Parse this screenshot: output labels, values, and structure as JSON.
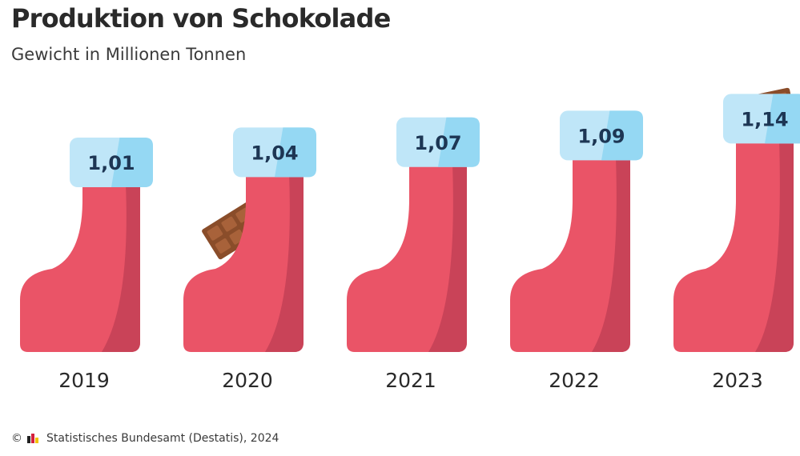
{
  "header": {
    "title": "Produktion von Schokolade",
    "subtitle": "Gewicht in Millionen Tonnen"
  },
  "footer": {
    "copyright_symbol": "©",
    "source": "Statistisches Bundesamt (Destatis), 2024"
  },
  "colors": {
    "sock": "#ea5467",
    "sock_shade": "#c94358",
    "cuff": "#bfe6f8",
    "cuff_shade": "#95d8f3",
    "label_text": "#1d3654",
    "chocolate": "#8a4d2a",
    "chocolate_square": "#a8623a",
    "axis_text": "#2a2a2a"
  },
  "chart_data": {
    "type": "bar",
    "title": "Produktion von Schokolade",
    "subtitle": "Gewicht in Millionen Tonnen",
    "categories": [
      "2019",
      "2020",
      "2021",
      "2022",
      "2023"
    ],
    "values": [
      1.01,
      1.04,
      1.07,
      1.09,
      1.14
    ],
    "value_labels": [
      "1,01",
      "1,04",
      "1,07",
      "1,09",
      "1,14"
    ],
    "unit": "Millionen Tonnen",
    "decorations": [
      "none",
      "chocolate-bar",
      "none",
      "none",
      "chocolate-bar"
    ]
  }
}
